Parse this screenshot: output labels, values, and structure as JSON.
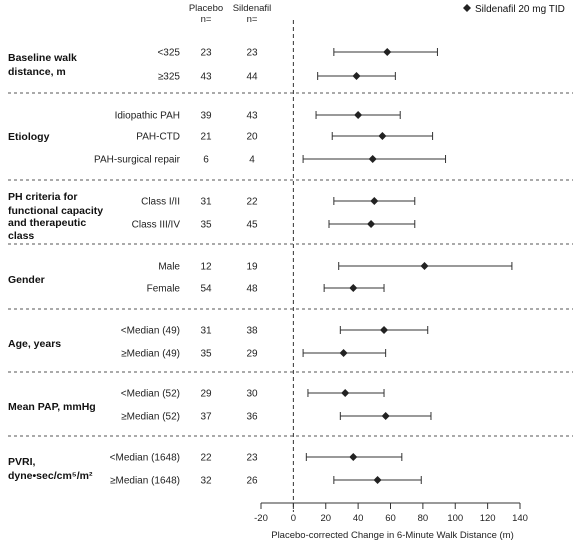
{
  "header": {
    "placebo_line1": "Placebo",
    "placebo_line2": "n=",
    "sildenafil_line1": "Sildenafil",
    "sildenafil_line2": "n="
  },
  "legend": {
    "marker": "diamond",
    "label": "Sildenafil 20 mg TID",
    "position": "top-right"
  },
  "chart_data": {
    "type": "forest",
    "xlabel": "Placebo-corrected Change in 6-Minute Walk Distance (m)",
    "xlim": [
      -20,
      140
    ],
    "xticks": [
      -20,
      0,
      20,
      40,
      60,
      80,
      100,
      120,
      140
    ],
    "reference_line": 0,
    "groups": [
      {
        "label_lines": [
          "Baseline walk",
          "distance, m"
        ],
        "rows": [
          {
            "sub": "<325",
            "placebo_n": "23",
            "sildenafil_n": "23",
            "est": 58,
            "lo": 25,
            "hi": 89
          },
          {
            "sub": "≥325",
            "placebo_n": "43",
            "sildenafil_n": "44",
            "est": 39,
            "lo": 15,
            "hi": 63
          }
        ]
      },
      {
        "label_lines": [
          "Etiology"
        ],
        "rows": [
          {
            "sub": "Idiopathic PAH",
            "placebo_n": "39",
            "sildenafil_n": "43",
            "est": 40,
            "lo": 14,
            "hi": 66
          },
          {
            "sub": "PAH-CTD",
            "placebo_n": "21",
            "sildenafil_n": "20",
            "est": 55,
            "lo": 24,
            "hi": 86
          },
          {
            "sub": "PAH-surgical repair",
            "placebo_n": "6",
            "sildenafil_n": "4",
            "est": 49,
            "lo": 6,
            "hi": 94
          }
        ]
      },
      {
        "label_lines": [
          "PH criteria for",
          "functional capacity",
          "and therapeutic",
          "class"
        ],
        "rows": [
          {
            "sub": "Class I/II",
            "placebo_n": "31",
            "sildenafil_n": "22",
            "est": 50,
            "lo": 25,
            "hi": 75
          },
          {
            "sub": "Class III/IV",
            "placebo_n": "35",
            "sildenafil_n": "45",
            "est": 48,
            "lo": 22,
            "hi": 75
          }
        ]
      },
      {
        "label_lines": [
          "Gender"
        ],
        "rows": [
          {
            "sub": "Male",
            "placebo_n": "12",
            "sildenafil_n": "19",
            "est": 81,
            "lo": 28,
            "hi": 135
          },
          {
            "sub": "Female",
            "placebo_n": "54",
            "sildenafil_n": "48",
            "est": 37,
            "lo": 19,
            "hi": 56
          }
        ]
      },
      {
        "label_lines": [
          "Age, years"
        ],
        "rows": [
          {
            "sub": "<Median (49)",
            "placebo_n": "31",
            "sildenafil_n": "38",
            "est": 56,
            "lo": 29,
            "hi": 83
          },
          {
            "sub": "≥Median (49)",
            "placebo_n": "35",
            "sildenafil_n": "29",
            "est": 31,
            "lo": 6,
            "hi": 57
          }
        ]
      },
      {
        "label_lines": [
          "Mean PAP, mmHg"
        ],
        "rows": [
          {
            "sub": "<Median (52)",
            "placebo_n": "29",
            "sildenafil_n": "30",
            "est": 32,
            "lo": 9,
            "hi": 56
          },
          {
            "sub": "≥Median (52)",
            "placebo_n": "37",
            "sildenafil_n": "36",
            "est": 57,
            "lo": 29,
            "hi": 85
          }
        ]
      },
      {
        "label_lines": [
          "PVRI,",
          "dyne•sec/cm⁵/m²"
        ],
        "rows": [
          {
            "sub": "<Median (1648)",
            "placebo_n": "22",
            "sildenafil_n": "23",
            "est": 37,
            "lo": 8,
            "hi": 67
          },
          {
            "sub": "≥Median (1648)",
            "placebo_n": "32",
            "sildenafil_n": "26",
            "est": 52,
            "lo": 25,
            "hi": 79
          }
        ]
      }
    ]
  }
}
